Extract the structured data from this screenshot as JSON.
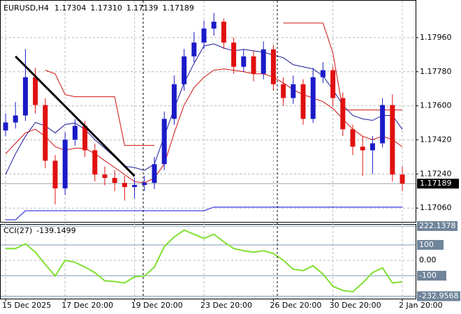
{
  "chart_data": [
    {
      "type": "candlestick",
      "title": "EURUSD,H4",
      "ohlc_text": [
        "1.17304",
        "1.17310",
        "1.17139",
        "1.17189"
      ],
      "categories": [
        "15 Dec 2025",
        null,
        null,
        null,
        null,
        null,
        "17 Dec 20:00",
        null,
        null,
        null,
        null,
        null,
        null,
        "19 Dec 20:00",
        null,
        null,
        null,
        null,
        null,
        null,
        "23 Dec 20:00",
        null,
        null,
        null,
        null,
        null,
        null,
        "26 Dec 20:00",
        null,
        null,
        null,
        null,
        null,
        "30 Dec 20:00",
        null,
        null,
        null,
        null,
        null,
        null,
        "2 Jan 20:00"
      ],
      "open": [
        1.1747,
        1.17512,
        1.17549,
        1.17751,
        1.17604,
        1.1731,
        1.17164,
        1.17421,
        1.17494,
        1.17365,
        1.17237,
        1.17219,
        1.17193,
        1.17171,
        1.17182,
        1.17193,
        1.17292,
        1.17531,
        1.17714,
        1.17861,
        1.17934,
        1.18008,
        1.18044,
        1.17934,
        1.17806,
        1.17861,
        1.17769,
        1.17898,
        1.17714,
        1.17641,
        1.17714,
        1.17531,
        1.17751,
        1.17788,
        1.17641,
        1.17476,
        1.17384,
        1.17365,
        1.17402,
        1.17604,
        1.17237
      ],
      "high": [
        1.1756,
        1.1762,
        1.179,
        1.178,
        1.1764,
        1.1734,
        1.1746,
        1.1753,
        1.1752,
        1.174,
        1.1728,
        1.1726,
        1.1723,
        1.1722,
        1.1723,
        1.1733,
        1.1757,
        1.1776,
        1.179,
        1.1799,
        1.1805,
        1.1809,
        1.1806,
        1.1796,
        1.179,
        1.1789,
        1.1794,
        1.1792,
        1.1775,
        1.1776,
        1.1774,
        1.178,
        1.1783,
        1.1781,
        1.1767,
        1.175,
        1.1744,
        1.1744,
        1.1764,
        1.1766,
        1.1728
      ],
      "low": [
        1.1744,
        1.1748,
        1.1752,
        1.1756,
        1.1727,
        1.1708,
        1.1713,
        1.1739,
        1.1733,
        1.172,
        1.1718,
        1.1715,
        1.171,
        1.1711,
        1.1715,
        1.1716,
        1.1726,
        1.175,
        1.1768,
        1.1783,
        1.179,
        1.1797,
        1.179,
        1.1777,
        1.1778,
        1.1773,
        1.1774,
        1.1768,
        1.176,
        1.1761,
        1.175,
        1.1751,
        1.1772,
        1.176,
        1.1744,
        1.1734,
        1.1723,
        1.1724,
        1.1738,
        1.172,
        1.1715
      ],
      "close": [
        1.17512,
        1.17549,
        1.17751,
        1.17604,
        1.1731,
        1.17164,
        1.17421,
        1.17494,
        1.17365,
        1.17237,
        1.17219,
        1.17193,
        1.17171,
        1.17182,
        1.17193,
        1.17292,
        1.17531,
        1.17714,
        1.17861,
        1.17934,
        1.18008,
        1.18044,
        1.17934,
        1.17806,
        1.17861,
        1.17769,
        1.17898,
        1.17714,
        1.17641,
        1.17714,
        1.17531,
        1.17751,
        1.17788,
        1.17641,
        1.17476,
        1.17384,
        1.17365,
        1.17402,
        1.17604,
        1.17237,
        1.17189
      ],
      "up_color": "#1a1ac8",
      "down_color": "#e01010",
      "lines": [
        {
          "color": "#1a1a9a",
          "values": [
            1.17237,
            1.17347,
            1.17439,
            1.17512,
            1.17494,
            1.17457,
            1.17501,
            1.17509,
            1.17476,
            1.17421,
            1.17376,
            1.17329,
            1.17281,
            1.17274,
            1.17259,
            1.17292,
            1.17439,
            1.17586,
            1.17721,
            1.17824,
            1.17916,
            1.17927,
            1.17905,
            1.1789,
            1.17898,
            1.1789,
            1.17883,
            1.17868,
            1.17854,
            1.17817,
            1.17806,
            1.17795,
            1.17758,
            1.17685,
            1.17604,
            1.17549,
            1.17531,
            1.17523,
            1.17549,
            1.17549,
            1.17476
          ]
        },
        {
          "color": "#d01010",
          "values": [
            1.17347,
            1.17402,
            1.17457,
            1.17476,
            1.17439,
            1.17384,
            1.17365,
            1.17376,
            1.17376,
            1.17347,
            1.1731,
            1.17274,
            1.17237,
            1.172,
            1.17193,
            1.17219,
            1.17292,
            1.17457,
            1.17604,
            1.17696,
            1.17751,
            1.17788,
            1.17795,
            1.17788,
            1.1778,
            1.17769,
            1.17769,
            1.17751,
            1.17721,
            1.17685,
            1.17659,
            1.17641,
            1.17622,
            1.17586,
            1.17531,
            1.17476,
            1.17439,
            1.17421,
            1.17439,
            1.17421,
            1.17384
          ]
        },
        {
          "color": "#d01010",
          "values": [
            null,
            null,
            null,
            null,
            1.17788,
            1.17769,
            1.17659,
            1.17648,
            1.17648,
            1.17648,
            1.17648,
            1.17648,
            1.17391,
            1.17391,
            1.17391,
            1.17391,
            null,
            null,
            null,
            null,
            null,
            null,
            null,
            null,
            null,
            null,
            null,
            null,
            1.18037,
            1.18037,
            1.18037,
            1.18037,
            1.18037,
            1.17879,
            1.17578,
            1.17578,
            1.17578,
            1.17578,
            1.17578,
            1.17578,
            1.17578
          ]
        },
        {
          "color": "#1010e0",
          "values": [
            1.16998,
            1.16998,
            1.17046,
            1.17046,
            1.17046,
            1.17046,
            1.17046,
            1.17046,
            1.17046,
            1.17046,
            1.17046,
            1.17046,
            1.17046,
            1.17046,
            1.17046,
            1.17046,
            1.17046,
            1.17046,
            1.17046,
            1.17046,
            1.17046,
            1.17065,
            1.17065,
            1.17065,
            1.17065,
            1.17065,
            1.17065,
            1.17065,
            1.17065,
            1.17065,
            1.17065,
            1.17065,
            1.17065,
            1.17065,
            1.17065,
            1.17065,
            1.17065,
            1.17065,
            1.17065,
            1.17065,
            1.17065
          ]
        }
      ],
      "trendline": {
        "x": [
          1,
          13
        ],
        "values": [
          1.17861,
          1.17229
        ]
      },
      "current_price": 1.17189,
      "ylim": [
        1.16987,
        1.18155
      ],
      "yticks": [
        {
          "value": 1.1796,
          "label": "1.17960"
        },
        {
          "value": 1.1778,
          "label": "1.17780"
        },
        {
          "value": 1.176,
          "label": "1.17600"
        },
        {
          "value": 1.1742,
          "label": "1.17420"
        },
        {
          "value": 1.1724,
          "label": "1.17240"
        },
        {
          "value": 1.1706,
          "label": "1.17060"
        }
      ],
      "grid": true
    },
    {
      "type": "line",
      "title": "CCI(27)",
      "value_text": "-139.1499",
      "color": "#80e030",
      "values": [
        76,
        76,
        107,
        53,
        -27,
        -102,
        0,
        -13,
        -44,
        -80,
        -133,
        -138,
        -147,
        -107,
        -102,
        -44,
        89,
        151,
        196,
        169,
        142,
        169,
        120,
        76,
        62,
        53,
        62,
        44,
        0,
        -58,
        -67,
        -36,
        -89,
        -169,
        -196,
        -204,
        -147,
        -80,
        -49,
        -147,
        -139.1499
      ],
      "ylim": [
        -248.9,
        231.1
      ],
      "yticks": [
        222.1378,
        100,
        {
          "value": 0,
          "label": "0.00"
        },
        -100,
        -232.9568
      ]
    }
  ]
}
